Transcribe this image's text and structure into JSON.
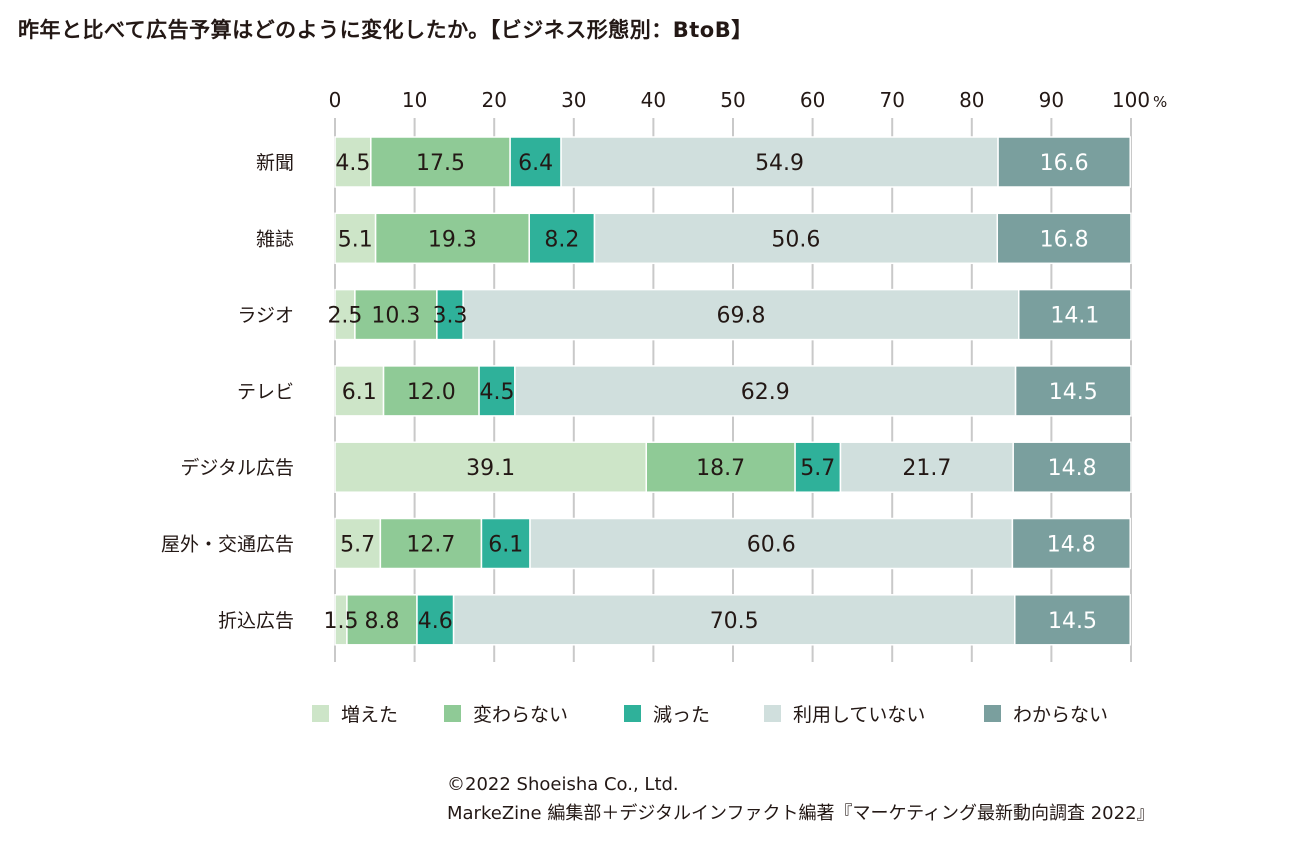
{
  "title": "昨年と比べて広告予算はどのように変化したか。【ビジネス形態別：BtoB】",
  "chart_data": {
    "type": "bar",
    "orientation": "horizontal",
    "stacked": true,
    "title": "昨年と比べて広告予算はどのように変化したか。【ビジネス形態別：BtoB】",
    "categories": [
      "新聞",
      "雑誌",
      "ラジオ",
      "テレビ",
      "デジタル広告",
      "屋外・交通広告",
      "折込広告"
    ],
    "xlim": [
      0,
      100
    ],
    "x_ticks": [
      "0",
      "10",
      "20",
      "30",
      "40",
      "50",
      "60",
      "70",
      "80",
      "90",
      "100"
    ],
    "x_unit": "%",
    "grid": true,
    "legend_position": "bottom",
    "series": [
      {
        "name": "増えた",
        "color": "#cde5c8",
        "values": [
          4.5,
          5.1,
          2.5,
          6.1,
          39.1,
          5.7,
          1.5
        ],
        "labels": [
          "4.5",
          "5.1",
          "2.5",
          "6.1",
          "39.1",
          "5.7",
          "1.5"
        ]
      },
      {
        "name": "変わらない",
        "color": "#8fca96",
        "values": [
          17.5,
          19.3,
          10.3,
          12.0,
          18.7,
          12.7,
          8.8
        ],
        "labels": [
          "17.5",
          "19.3",
          "10.3",
          "12.0",
          "18.7",
          "12.7",
          "8.8"
        ]
      },
      {
        "name": "減った",
        "color": "#2fb19a",
        "values": [
          6.4,
          8.2,
          3.3,
          4.5,
          5.7,
          6.1,
          4.6
        ],
        "labels": [
          "6.4",
          "8.2",
          "3.3",
          "4.5",
          "5.7",
          "6.1",
          "4.6"
        ]
      },
      {
        "name": "利用していない",
        "color": "#d0dfdd",
        "values": [
          54.9,
          50.6,
          69.8,
          62.9,
          21.7,
          60.6,
          70.5
        ],
        "labels": [
          "54.9",
          "50.6",
          "69.8",
          "62.9",
          "21.7",
          "60.6",
          "70.5"
        ]
      },
      {
        "name": "わからない",
        "color": "#7a9f9e",
        "values": [
          16.6,
          16.8,
          14.1,
          14.5,
          14.8,
          14.8,
          14.5
        ],
        "labels": [
          "16.6",
          "16.8",
          "14.1",
          "14.5",
          "14.8",
          "14.8",
          "14.5"
        ]
      }
    ]
  },
  "footer": {
    "line1": "©2022 Shoeisha Co., Ltd.",
    "line2": "MarkeZine 編集部＋デジタルインファクト編著『マーケティング最新動向調査 2022』"
  }
}
